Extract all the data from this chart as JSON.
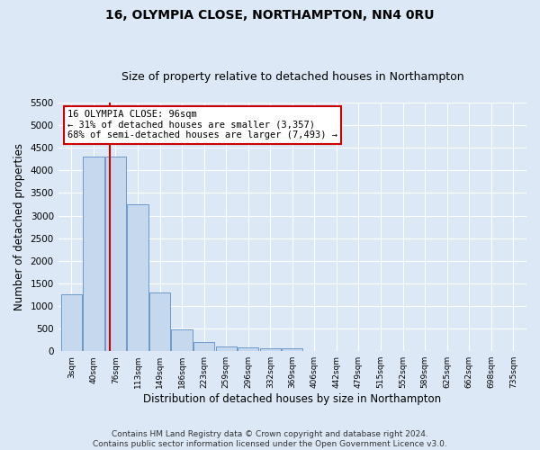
{
  "title": "16, OLYMPIA CLOSE, NORTHAMPTON, NN4 0RU",
  "subtitle": "Size of property relative to detached houses in Northampton",
  "xlabel": "Distribution of detached houses by size in Northampton",
  "ylabel": "Number of detached properties",
  "bin_labels": [
    "3sqm",
    "40sqm",
    "76sqm",
    "113sqm",
    "149sqm",
    "186sqm",
    "223sqm",
    "259sqm",
    "296sqm",
    "332sqm",
    "369sqm",
    "406sqm",
    "442sqm",
    "479sqm",
    "515sqm",
    "552sqm",
    "589sqm",
    "625sqm",
    "662sqm",
    "698sqm",
    "735sqm"
  ],
  "bar_heights": [
    1250,
    4300,
    4300,
    3250,
    1300,
    475,
    200,
    100,
    80,
    70,
    60,
    0,
    0,
    0,
    0,
    0,
    0,
    0,
    0,
    0,
    0
  ],
  "bar_color": "#c5d8ed",
  "bar_edge_color": "#5b8ec4",
  "vline_color": "#cc0000",
  "vline_x": 1.72,
  "annotation_text": "16 OLYMPIA CLOSE: 96sqm\n← 31% of detached houses are smaller (3,357)\n68% of semi-detached houses are larger (7,493) →",
  "annotation_box_color": "#ffffff",
  "annotation_box_edge": "#cc0000",
  "ylim": [
    0,
    5500
  ],
  "yticks": [
    0,
    500,
    1000,
    1500,
    2000,
    2500,
    3000,
    3500,
    4000,
    4500,
    5000,
    5500
  ],
  "footer": "Contains HM Land Registry data © Crown copyright and database right 2024.\nContains public sector information licensed under the Open Government Licence v3.0.",
  "bg_color": "#dce8f5",
  "plot_bg_color": "#dce8f5",
  "title_fontsize": 10,
  "subtitle_fontsize": 9,
  "label_fontsize": 8.5,
  "footer_fontsize": 6.5
}
